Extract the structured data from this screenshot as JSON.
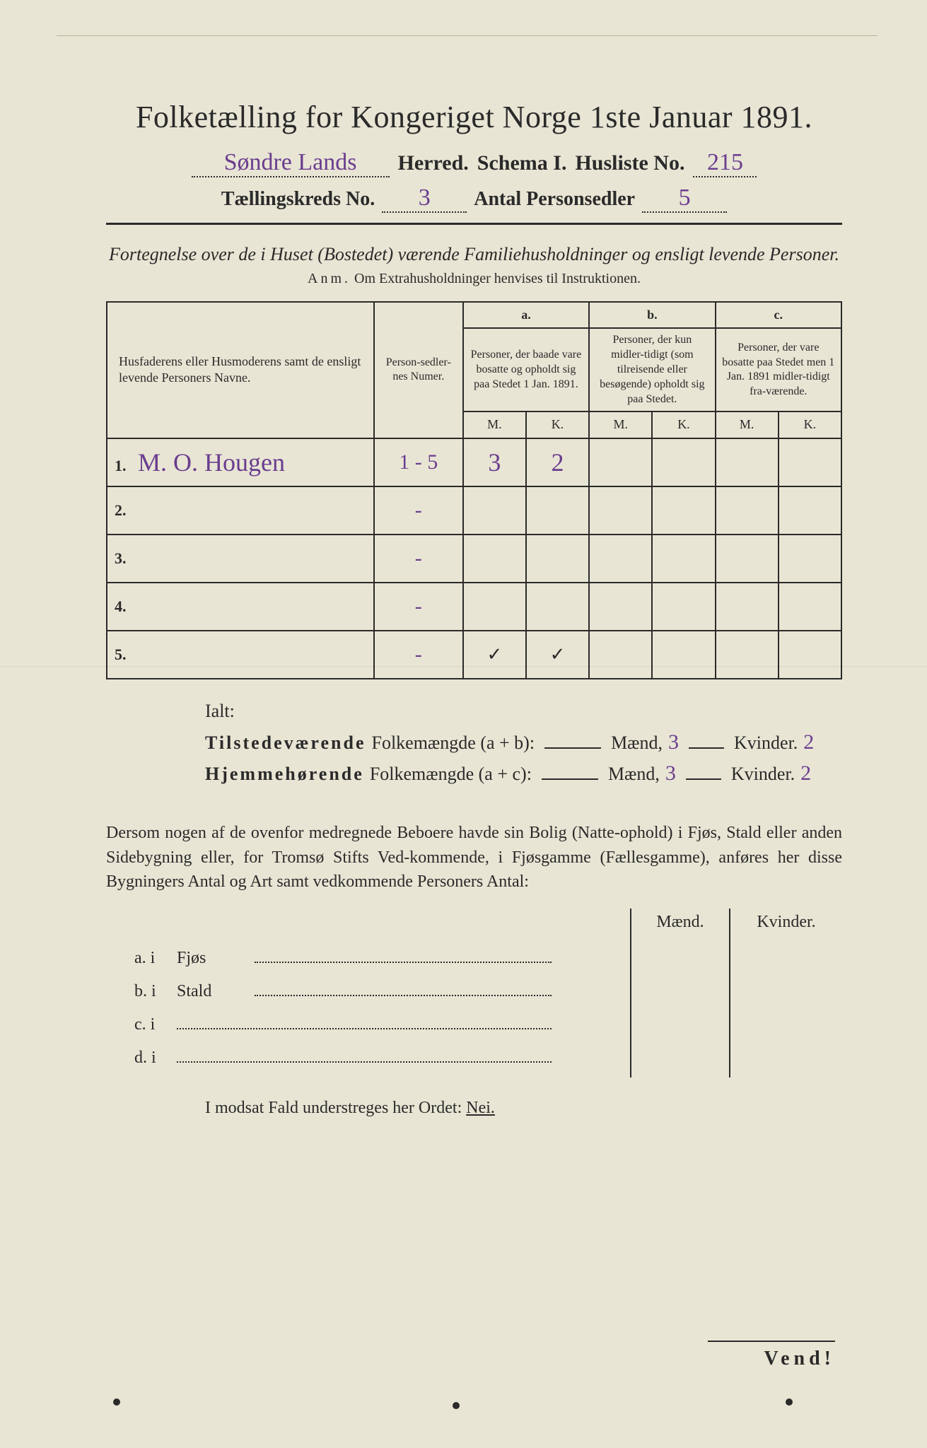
{
  "colors": {
    "paper": "#e8e5d4",
    "ink": "#2a2a2a",
    "handwriting": "#6a3d8f",
    "background": "#3a3a38"
  },
  "header": {
    "title": "Folketælling for Kongeriget Norge 1ste Januar 1891.",
    "herred_value": "Søndre Lands",
    "herred_label": "Herred.",
    "schema_label": "Schema I.",
    "husliste_label": "Husliste No.",
    "husliste_value": "215",
    "kreds_label": "Tællingskreds No.",
    "kreds_value": "3",
    "sedler_label": "Antal Personsedler",
    "sedler_value": "5"
  },
  "subtitle": "Fortegnelse over de i Huset (Bostedet) værende Familiehusholdninger og ensligt levende Personer.",
  "anm_label": "Anm.",
  "anm_text": "Om Extrahusholdninger henvises til Instruktionen.",
  "table": {
    "col_name": "Husfaderens eller Husmoderens samt de ensligt levende Personers Navne.",
    "col_num": "Person-sedler-nes Numer.",
    "col_a_label": "a.",
    "col_a": "Personer, der baade vare bosatte og opholdt sig paa Stedet 1 Jan. 1891.",
    "col_b_label": "b.",
    "col_b": "Personer, der kun midler-tidigt (som tilreisende eller besøgende) opholdt sig paa Stedet.",
    "col_c_label": "c.",
    "col_c": "Personer, der vare bosatte paa Stedet men 1 Jan. 1891 midler-tidigt fra-værende.",
    "m": "M.",
    "k": "K.",
    "rows": [
      {
        "n": "1.",
        "name": "M. O. Hougen",
        "num": "1 - 5",
        "a_m": "3",
        "a_k": "2",
        "b_m": "",
        "b_k": "",
        "c_m": "",
        "c_k": ""
      },
      {
        "n": "2.",
        "name": "",
        "num": "-",
        "a_m": "",
        "a_k": "",
        "b_m": "",
        "b_k": "",
        "c_m": "",
        "c_k": ""
      },
      {
        "n": "3.",
        "name": "",
        "num": "-",
        "a_m": "",
        "a_k": "",
        "b_m": "",
        "b_k": "",
        "c_m": "",
        "c_k": ""
      },
      {
        "n": "4.",
        "name": "",
        "num": "-",
        "a_m": "",
        "a_k": "",
        "b_m": "",
        "b_k": "",
        "c_m": "",
        "c_k": ""
      },
      {
        "n": "5.",
        "name": "",
        "num": "-",
        "a_m": "✓",
        "a_k": "✓",
        "b_m": "",
        "b_k": "",
        "c_m": "",
        "c_k": ""
      }
    ]
  },
  "ialt": {
    "label": "Ialt:",
    "row1_a": "Tilstedeværende",
    "row1_b": "Folkemængde (a + b):",
    "row2_a": "Hjemmehørende",
    "row2_b": "Folkemængde (a + c):",
    "maend": "Mænd,",
    "kvinder": "Kvinder.",
    "r1_m": "3",
    "r1_k": "2",
    "r2_m": "3",
    "r2_k": "2"
  },
  "dersom": "Dersom nogen af de ovenfor medregnede Beboere havde sin Bolig (Natte-ophold) i Fjøs, Stald eller anden Sidebygning eller, for Tromsø Stifts Ved-kommende, i Fjøsgamme (Fællesgamme), anføres her disse Bygningers Antal og Art samt vedkommende Personers Antal:",
  "sidebyg": {
    "maend": "Mænd.",
    "kvinder": "Kvinder.",
    "rows": [
      {
        "label": "a.  i",
        "type": "Fjøs"
      },
      {
        "label": "b.  i",
        "type": "Stald"
      },
      {
        "label": "c.  i",
        "type": ""
      },
      {
        "label": "d.  i",
        "type": ""
      }
    ]
  },
  "modsat": "I modsat Fald understreges her Ordet:",
  "nei": "Nei.",
  "vend": "Vend!"
}
